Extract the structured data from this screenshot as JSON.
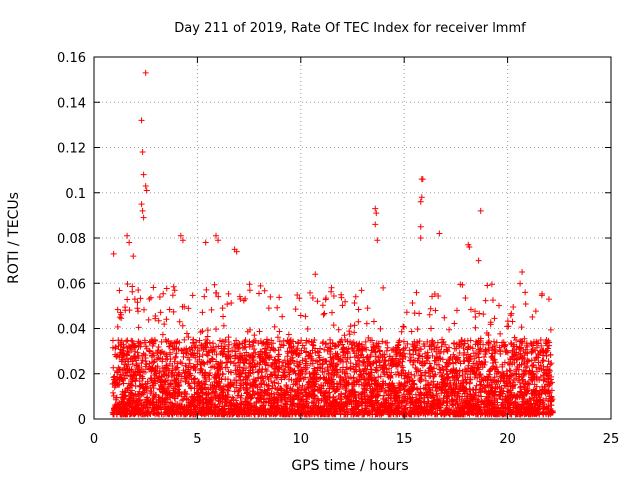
{
  "chart_data": {
    "type": "scatter",
    "title": "Day 211 of 2019, Rate Of TEC Index for receiver lmmf",
    "xlabel": "GPS time / hours",
    "ylabel": "ROTI / TECUs",
    "xlim": [
      0,
      25
    ],
    "ylim": [
      0,
      0.16
    ],
    "xticks": [
      0,
      5,
      10,
      15,
      20,
      25
    ],
    "xtick_labels": [
      "0",
      "5",
      "10",
      "15",
      "20",
      "25"
    ],
    "yticks": [
      0,
      0.02,
      0.04,
      0.06,
      0.08,
      0.1,
      0.12,
      0.14,
      0.16
    ],
    "ytick_labels": [
      "0",
      "0.02",
      "0.04",
      "0.06",
      "0.08",
      "0.1",
      "0.12",
      "0.14",
      "0.16"
    ],
    "grid": true,
    "marker": "+",
    "color": "#ff0000",
    "x_range_of_data": [
      0.9,
      22.2
    ],
    "notable_points": [
      {
        "x": 2.5,
        "y": 0.153
      },
      {
        "x": 2.3,
        "y": 0.132
      },
      {
        "x": 2.35,
        "y": 0.118
      },
      {
        "x": 2.4,
        "y": 0.108
      },
      {
        "x": 2.5,
        "y": 0.103
      },
      {
        "x": 2.55,
        "y": 0.101
      },
      {
        "x": 2.3,
        "y": 0.095
      },
      {
        "x": 2.35,
        "y": 0.092
      },
      {
        "x": 2.4,
        "y": 0.089
      },
      {
        "x": 0.95,
        "y": 0.073
      },
      {
        "x": 1.6,
        "y": 0.081
      },
      {
        "x": 1.7,
        "y": 0.078
      },
      {
        "x": 1.9,
        "y": 0.072
      },
      {
        "x": 4.2,
        "y": 0.081
      },
      {
        "x": 4.3,
        "y": 0.079
      },
      {
        "x": 5.9,
        "y": 0.081
      },
      {
        "x": 6.0,
        "y": 0.079
      },
      {
        "x": 5.4,
        "y": 0.078
      },
      {
        "x": 6.8,
        "y": 0.075
      },
      {
        "x": 6.9,
        "y": 0.074
      },
      {
        "x": 10.7,
        "y": 0.064
      },
      {
        "x": 13.6,
        "y": 0.093
      },
      {
        "x": 13.65,
        "y": 0.091
      },
      {
        "x": 13.6,
        "y": 0.086
      },
      {
        "x": 13.7,
        "y": 0.079
      },
      {
        "x": 15.85,
        "y": 0.106
      },
      {
        "x": 15.9,
        "y": 0.106
      },
      {
        "x": 15.85,
        "y": 0.098
      },
      {
        "x": 15.8,
        "y": 0.096
      },
      {
        "x": 15.8,
        "y": 0.085
      },
      {
        "x": 15.8,
        "y": 0.08
      },
      {
        "x": 16.7,
        "y": 0.082
      },
      {
        "x": 18.1,
        "y": 0.077
      },
      {
        "x": 18.15,
        "y": 0.076
      },
      {
        "x": 18.7,
        "y": 0.092
      },
      {
        "x": 18.6,
        "y": 0.07
      },
      {
        "x": 20.7,
        "y": 0.065
      },
      {
        "x": 22.0,
        "y": 0.053
      }
    ],
    "bulk_description_bands": [
      {
        "x_from": 0.9,
        "x_to": 22.2,
        "y_min": 0.002,
        "y_typical_max": 0.035,
        "y_occasional_max": 0.06
      }
    ]
  }
}
